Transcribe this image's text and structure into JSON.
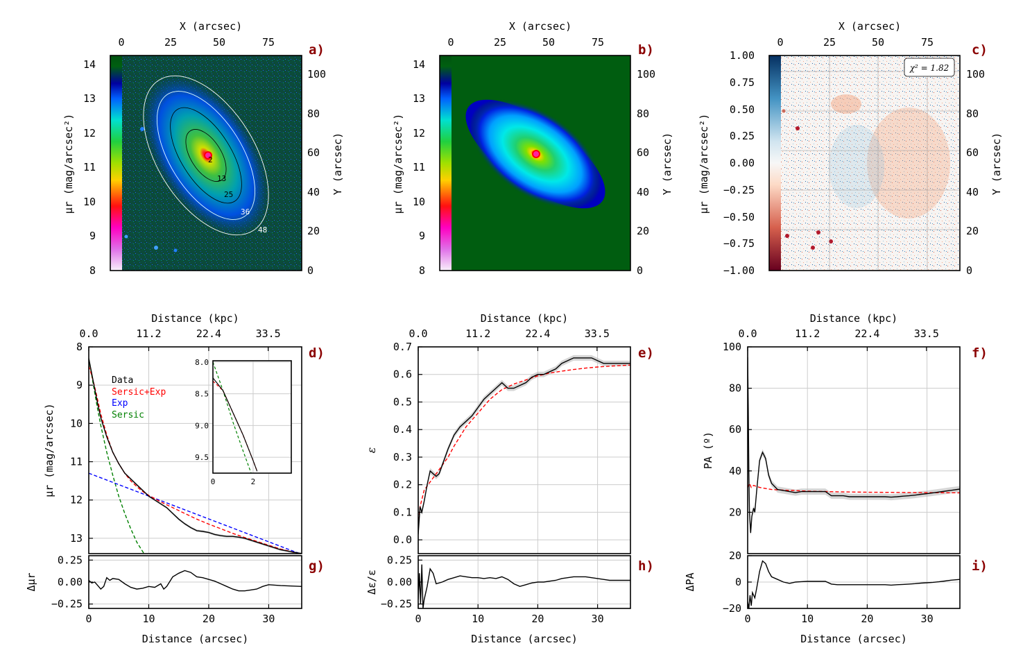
{
  "colors": {
    "data": "#000000",
    "sersic_exp": "#ff0000",
    "exp": "#0000ff",
    "sersic": "#008000",
    "panel_tag": "#8b0000"
  },
  "panel_tags": [
    "a)",
    "b)",
    "c)",
    "d)",
    "e)",
    "f)",
    "g)",
    "h)",
    "i)"
  ],
  "image_panels": {
    "x_top_label": "X (arcsec)",
    "x_top_ticks": [
      "0",
      "25",
      "50",
      "75"
    ],
    "y_right_label": "Y (arcsec)",
    "y_right_ticks": [
      "0",
      "20",
      "40",
      "60",
      "80",
      "100"
    ],
    "cbar_label_sb": "μr (mag/arcsec²)",
    "cbar_ticks_sb": [
      "8",
      "9",
      "10",
      "11",
      "12",
      "13",
      "14"
    ],
    "cbar_ticks_res": [
      "−1.00",
      "−0.75",
      "−0.50",
      "−0.25",
      "0.00",
      "0.25",
      "0.50",
      "0.75",
      "1.00"
    ],
    "contour_labels": [
      "2",
      "13",
      "25",
      "36",
      "48"
    ],
    "chi2_label": "χ² = 1.82"
  },
  "chart_data": [
    {
      "id": "d",
      "type": "line",
      "xlabel_top": "Distance (kpc)",
      "x_top_ticks": [
        "0.0",
        "11.2",
        "22.4",
        "33.5"
      ],
      "ylabel": "μr (mag/arcsec)",
      "xlim": [
        0,
        35.5
      ],
      "ylim": [
        13.4,
        8.0
      ],
      "y_ticks": [
        "8",
        "9",
        "10",
        "11",
        "12",
        "13"
      ],
      "legend": [
        "Data",
        "Sersic+Exp",
        "Exp",
        "Sersic"
      ],
      "series": [
        {
          "name": "Data",
          "x": [
            0,
            0.5,
            1,
            1.5,
            2,
            3,
            4,
            5,
            6,
            7,
            8,
            9,
            10,
            11,
            12,
            13,
            14,
            15,
            16,
            17,
            18,
            19,
            20,
            21,
            22,
            23,
            24,
            25,
            26,
            27,
            28,
            29,
            30,
            31,
            32,
            33,
            34,
            35.5
          ],
          "y": [
            8.3,
            8.7,
            9.1,
            9.5,
            9.85,
            10.35,
            10.75,
            11.05,
            11.3,
            11.45,
            11.6,
            11.75,
            11.9,
            12.0,
            12.1,
            12.2,
            12.35,
            12.5,
            12.62,
            12.72,
            12.8,
            12.82,
            12.85,
            12.9,
            12.93,
            12.95,
            12.95,
            12.97,
            13.0,
            13.05,
            13.1,
            13.15,
            13.2,
            13.25,
            13.3,
            13.33,
            13.36,
            13.4
          ]
        },
        {
          "name": "Sersic+Exp",
          "x": [
            0,
            0.5,
            1,
            1.5,
            2,
            3,
            4,
            5,
            6,
            7,
            8,
            9,
            10,
            12,
            14,
            16,
            18,
            20,
            22,
            24,
            26,
            28,
            30,
            32,
            34,
            35.5
          ],
          "y": [
            8.5,
            8.75,
            9.05,
            9.4,
            9.75,
            10.3,
            10.75,
            11.05,
            11.3,
            11.5,
            11.65,
            11.78,
            11.88,
            12.05,
            12.2,
            12.35,
            12.5,
            12.63,
            12.75,
            12.87,
            12.98,
            13.08,
            13.18,
            13.28,
            13.36,
            13.42
          ]
        },
        {
          "name": "Exp",
          "x": [
            0,
            35.5
          ],
          "y": [
            11.3,
            13.42
          ]
        },
        {
          "name": "Sersic",
          "x": [
            0,
            0.5,
            1,
            1.5,
            2,
            3,
            4,
            5,
            6,
            7,
            8,
            9.2
          ],
          "y": [
            8.3,
            8.75,
            9.2,
            9.65,
            10.05,
            10.75,
            11.35,
            11.9,
            12.35,
            12.75,
            13.1,
            13.4
          ]
        }
      ],
      "inset": {
        "xlim": [
          0,
          3.9
        ],
        "ylim": [
          9.75,
          7.98
        ],
        "x_ticks": [
          "0",
          "2"
        ],
        "y_ticks": [
          "8.0",
          "8.5",
          "9.0",
          "9.5"
        ],
        "series": [
          {
            "name": "Data",
            "x": [
              0,
              0.5,
              1,
              1.5,
              2,
              2.2
            ],
            "y": [
              8.25,
              8.45,
              8.8,
              9.15,
              9.55,
              9.72
            ]
          },
          {
            "name": "Sersic+Exp",
            "x": [
              0,
              0.5,
              1,
              1.5,
              2,
              2.2
            ],
            "y": [
              8.3,
              8.45,
              8.8,
              9.15,
              9.55,
              9.72
            ]
          },
          {
            "name": "Sersic",
            "x": [
              0,
              0.5,
              1,
              1.5,
              1.9
            ],
            "y": [
              8.0,
              8.45,
              8.95,
              9.4,
              9.75
            ]
          }
        ]
      }
    },
    {
      "id": "g",
      "type": "line",
      "xlabel": "Distance (arcsec)",
      "ylabel": "Δμr",
      "xlim": [
        0,
        35.5
      ],
      "ylim": [
        -0.3,
        0.3
      ],
      "x_ticks": [
        "0",
        "10",
        "20",
        "30"
      ],
      "y_ticks": [
        "−0.25",
        "0.00",
        "0.25"
      ],
      "series": [
        {
          "name": "Residual",
          "x": [
            0,
            0.5,
            1,
            1.5,
            2,
            2.5,
            3,
            3.5,
            4,
            5,
            6,
            7,
            8,
            9,
            10,
            11,
            12,
            12.5,
            13,
            14,
            15,
            16,
            17,
            18,
            19,
            20,
            21,
            22,
            23,
            24,
            25,
            26,
            27,
            28,
            29,
            30,
            32,
            35.5
          ],
          "y": [
            0.02,
            -0.01,
            0.0,
            -0.04,
            -0.08,
            -0.05,
            0.05,
            0.02,
            0.04,
            0.03,
            -0.02,
            -0.06,
            -0.08,
            -0.07,
            -0.05,
            -0.06,
            -0.02,
            -0.08,
            -0.05,
            0.06,
            0.1,
            0.13,
            0.11,
            0.06,
            0.05,
            0.03,
            0.01,
            -0.02,
            -0.05,
            -0.08,
            -0.1,
            -0.1,
            -0.09,
            -0.08,
            -0.05,
            -0.03,
            -0.04,
            -0.05
          ]
        }
      ]
    },
    {
      "id": "e",
      "type": "line",
      "xlabel_top": "Distance (kpc)",
      "x_top_ticks": [
        "0.0",
        "11.2",
        "22.4",
        "33.5"
      ],
      "ylabel": "ε",
      "xlim": [
        0,
        35.5
      ],
      "ylim": [
        -0.05,
        0.7
      ],
      "y_ticks": [
        "0.0",
        "0.1",
        "0.2",
        "0.3",
        "0.4",
        "0.5",
        "0.6",
        "0.7"
      ],
      "series": [
        {
          "name": "Data",
          "x": [
            0,
            0.3,
            0.6,
            1,
            1.5,
            2,
            2.5,
            3,
            3.5,
            4,
            5,
            6,
            7,
            8,
            9,
            10,
            11,
            12,
            13,
            14,
            15,
            16,
            17,
            18,
            19,
            20,
            21,
            22,
            23,
            24,
            25,
            26,
            27,
            28,
            29,
            30,
            31,
            32,
            33,
            34,
            35.5
          ],
          "y": [
            0.02,
            0.12,
            0.1,
            0.14,
            0.2,
            0.25,
            0.24,
            0.23,
            0.24,
            0.27,
            0.33,
            0.38,
            0.41,
            0.43,
            0.45,
            0.48,
            0.51,
            0.53,
            0.55,
            0.57,
            0.55,
            0.55,
            0.56,
            0.57,
            0.59,
            0.6,
            0.6,
            0.61,
            0.62,
            0.64,
            0.65,
            0.66,
            0.66,
            0.66,
            0.66,
            0.65,
            0.64,
            0.64,
            0.64,
            0.64,
            0.64
          ]
        },
        {
          "name": "Model",
          "x": [
            0,
            0.3,
            1,
            2,
            3,
            4,
            5,
            6,
            8,
            10,
            12,
            14,
            16,
            18,
            20,
            22,
            24,
            26,
            28,
            30,
            32,
            35.5
          ],
          "y": [
            0.05,
            0.12,
            0.18,
            0.21,
            0.24,
            0.27,
            0.3,
            0.34,
            0.41,
            0.46,
            0.51,
            0.545,
            0.565,
            0.58,
            0.595,
            0.605,
            0.612,
            0.618,
            0.623,
            0.627,
            0.63,
            0.634
          ]
        }
      ]
    },
    {
      "id": "h",
      "type": "line",
      "xlabel": "Distance (arcsec)",
      "ylabel": "Δε/ε",
      "xlim": [
        0,
        35.5
      ],
      "ylim": [
        -0.3,
        0.3
      ],
      "x_ticks": [
        "0",
        "10",
        "20",
        "30"
      ],
      "y_ticks": [
        "−0.25",
        "0.00",
        "0.25"
      ],
      "series": [
        {
          "name": "Residual",
          "x": [
            0,
            0.2,
            0.4,
            0.6,
            0.8,
            1,
            1.5,
            2,
            2.5,
            3,
            4,
            5,
            6,
            7,
            8,
            9,
            10,
            11,
            12,
            13,
            14,
            15,
            16,
            17,
            18,
            19,
            20,
            21,
            22,
            23,
            24,
            25,
            26,
            27,
            28,
            29,
            30,
            31,
            32,
            33,
            34,
            35.5
          ],
          "y": [
            -0.2,
            0.1,
            -0.25,
            0.2,
            -0.3,
            -0.2,
            -0.05,
            0.15,
            0.1,
            -0.02,
            0.0,
            0.03,
            0.05,
            0.07,
            0.06,
            0.05,
            0.05,
            0.04,
            0.05,
            0.04,
            0.06,
            0.03,
            -0.02,
            -0.05,
            -0.03,
            -0.01,
            0.0,
            0.0,
            0.01,
            0.02,
            0.04,
            0.05,
            0.06,
            0.06,
            0.06,
            0.05,
            0.04,
            0.03,
            0.02,
            0.02,
            0.02,
            0.02
          ]
        }
      ]
    },
    {
      "id": "f",
      "type": "line",
      "xlabel_top": "Distance (kpc)",
      "x_top_ticks": [
        "0.0",
        "11.2",
        "22.4",
        "33.5"
      ],
      "ylabel": "PA (º)",
      "xlim": [
        0,
        35.5
      ],
      "ylim": [
        0,
        100
      ],
      "y_ticks": [
        "20",
        "40",
        "60",
        "80",
        "100"
      ],
      "series": [
        {
          "name": "Data",
          "x": [
            0,
            0.1,
            0.2,
            0.3,
            0.5,
            0.7,
            1,
            1.2,
            1.5,
            2,
            2.5,
            3,
            3.5,
            4,
            5,
            6,
            7,
            8,
            9,
            10,
            11,
            12,
            13,
            14,
            15,
            16,
            17,
            18,
            19,
            20,
            21,
            22,
            23,
            24,
            25,
            26,
            27,
            28,
            29,
            30,
            31,
            32,
            33,
            34,
            35.5
          ],
          "y": [
            95,
            70,
            40,
            20,
            10,
            18,
            22,
            20,
            30,
            45,
            49,
            46,
            38,
            34,
            31,
            30.5,
            30,
            29.5,
            30,
            30,
            30,
            30,
            30,
            28,
            28,
            28,
            27.5,
            27.5,
            27.5,
            27.5,
            27.5,
            27.5,
            27.5,
            27.3,
            27.5,
            27.8,
            28,
            28.3,
            28.7,
            29,
            29.4,
            29.8,
            30.2,
            30.6,
            31.2
          ]
        },
        {
          "name": "Model",
          "x": [
            0,
            0.3,
            0.6,
            1,
            2,
            4,
            6,
            8,
            10,
            15,
            20,
            25,
            30,
            35.5
          ],
          "y": [
            32,
            34,
            32,
            33,
            32,
            31,
            30.7,
            30.5,
            30.2,
            29.9,
            29.7,
            29.6,
            29.5,
            29.4
          ]
        }
      ]
    },
    {
      "id": "i",
      "type": "line",
      "xlabel": "Distance (arcsec)",
      "ylabel": "ΔPA",
      "xlim": [
        0,
        35.5
      ],
      "ylim": [
        -20,
        20
      ],
      "x_ticks": [
        "0",
        "10",
        "20",
        "30"
      ],
      "y_ticks": [
        "−20",
        "0",
        "20"
      ],
      "series": [
        {
          "name": "Residual",
          "x": [
            0,
            0.2,
            0.4,
            0.6,
            0.8,
            1,
            1.2,
            1.5,
            2,
            2.5,
            3,
            3.5,
            4,
            5,
            6,
            7,
            8,
            9,
            10,
            11,
            12,
            13,
            14,
            15,
            16,
            17,
            18,
            19,
            20,
            21,
            22,
            23,
            24,
            25,
            26,
            27,
            28,
            29,
            30,
            31,
            32,
            33,
            34,
            35.5
          ],
          "y": [
            -15,
            -20,
            -10,
            -18,
            -8,
            -10,
            -12,
            -5,
            8,
            16,
            14,
            8,
            4,
            2,
            0,
            -1,
            0,
            0.3,
            0.5,
            0.5,
            0.5,
            0.5,
            -1.5,
            -2,
            -2,
            -2,
            -2,
            -2,
            -2,
            -2,
            -2,
            -2,
            -2.3,
            -2,
            -1.8,
            -1.5,
            -1.2,
            -0.8,
            -0.5,
            -0.2,
            0.2,
            0.8,
            1.4,
            2
          ]
        }
      ]
    }
  ]
}
